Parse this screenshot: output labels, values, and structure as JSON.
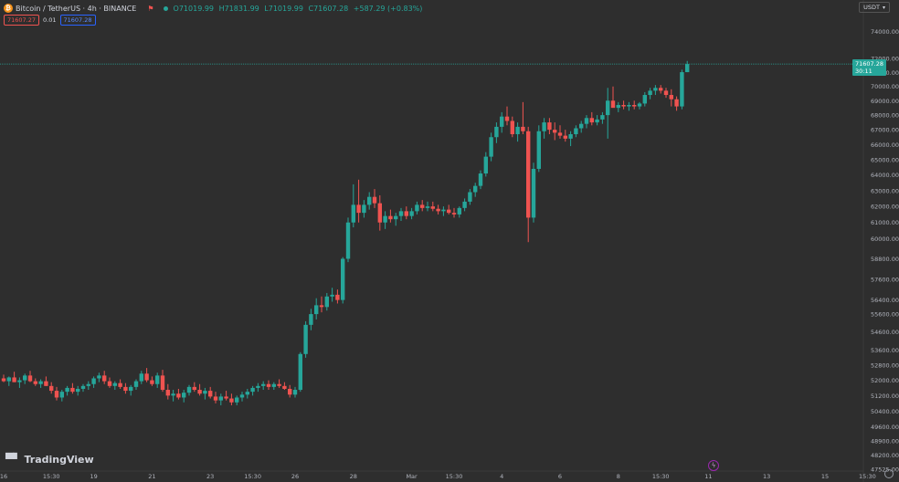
{
  "header": {
    "symbol_icon": "bitcoin-icon",
    "symbol_title": "Bitcoin / TetherUS · 4h · BINANCE",
    "ohlc": {
      "open": "O71019.99",
      "high": "H71831.99",
      "low": "L71019.99",
      "close": "C71607.28",
      "change": "+587.29 (+0.83%)"
    }
  },
  "trade": {
    "sell": "71607.27",
    "spread": "0.01",
    "buy": "71607.28"
  },
  "currency": "USDT",
  "last_price": {
    "value": "71607.28",
    "countdown": "30:11"
  },
  "brand": "TradingView",
  "colors": {
    "up": "#26a69a",
    "down": "#ef5350",
    "background": "#2e2e2e",
    "bolt": "#9c27b0"
  },
  "icons": [
    "bitcoin-icon",
    "flag-icon",
    "live-dot-icon",
    "chevron-down-icon",
    "lightning-icon",
    "gear-icon",
    "tradingview-logo-icon"
  ],
  "chart_data": {
    "type": "candlestick",
    "y_scale": "log",
    "ylim": [
      47525,
      75000
    ],
    "yticks": [
      74000,
      72000,
      71000,
      70000,
      69000,
      68000,
      67000,
      66000,
      65000,
      64000,
      63000,
      62000,
      61000,
      60000,
      58800,
      57600,
      56400,
      55600,
      54600,
      53600,
      52800,
      52000,
      51200,
      50400,
      49600,
      48900,
      48200,
      47525
    ],
    "ytick_labels": [
      "74000.00",
      "72000.00",
      "71000.00",
      "70000.00",
      "69000.00",
      "68000.00",
      "67000.00",
      "66000.00",
      "65000.00",
      "64000.00",
      "63000.00",
      "62000.00",
      "61000.00",
      "60000.00",
      "58800.00",
      "57600.00",
      "56400.00",
      "55600.00",
      "54600.00",
      "53600.00",
      "52800.00",
      "52000.00",
      "51200.00",
      "50400.00",
      "49600.00",
      "48900.00",
      "48200.00",
      "47525.00"
    ],
    "xticks": [
      {
        "label": "16",
        "index": 0
      },
      {
        "label": "15:30",
        "index": 9
      },
      {
        "label": "19",
        "index": 17
      },
      {
        "label": "21",
        "index": 28
      },
      {
        "label": "23",
        "index": 39
      },
      {
        "label": "15:30",
        "index": 47
      },
      {
        "label": "26",
        "index": 55
      },
      {
        "label": "28",
        "index": 66
      },
      {
        "label": "Mar",
        "index": 77
      },
      {
        "label": "15:30",
        "index": 85
      },
      {
        "label": "4",
        "index": 94
      },
      {
        "label": "6",
        "index": 105
      },
      {
        "label": "8",
        "index": 116
      },
      {
        "label": "15:30",
        "index": 124
      },
      {
        "label": "11",
        "index": 133
      },
      {
        "label": "13",
        "index": 144
      },
      {
        "label": "15",
        "index": 155
      },
      {
        "label": "15:30",
        "index": 163
      }
    ],
    "last_price": 71607.28,
    "candles": [
      [
        52100,
        52300,
        51900,
        51950
      ],
      [
        51950,
        52200,
        51700,
        52150
      ],
      [
        52150,
        52450,
        51900,
        51900
      ],
      [
        51900,
        52150,
        51600,
        52000
      ],
      [
        52000,
        52350,
        51800,
        52250
      ],
      [
        52250,
        52500,
        51900,
        51950
      ],
      [
        51950,
        52100,
        51700,
        51800
      ],
      [
        51800,
        52050,
        51600,
        51950
      ],
      [
        51950,
        52200,
        51700,
        51700
      ],
      [
        51700,
        51900,
        51300,
        51450
      ],
      [
        51450,
        51650,
        50950,
        51100
      ],
      [
        51100,
        51500,
        50900,
        51400
      ],
      [
        51400,
        51700,
        51200,
        51600
      ],
      [
        51600,
        51850,
        51300,
        51400
      ],
      [
        51400,
        51700,
        51200,
        51550
      ],
      [
        51550,
        51800,
        51400,
        51700
      ],
      [
        51700,
        51950,
        51500,
        51800
      ],
      [
        51800,
        52200,
        51600,
        52100
      ],
      [
        52100,
        52400,
        51900,
        52250
      ],
      [
        52250,
        52500,
        51800,
        51950
      ],
      [
        51950,
        52150,
        51600,
        51700
      ],
      [
        51700,
        51950,
        51500,
        51850
      ],
      [
        51850,
        52050,
        51550,
        51650
      ],
      [
        51650,
        51850,
        51300,
        51450
      ],
      [
        51450,
        51750,
        51200,
        51650
      ],
      [
        51650,
        52050,
        51500,
        51950
      ],
      [
        51950,
        52500,
        51800,
        52350
      ],
      [
        52350,
        52650,
        51900,
        52000
      ],
      [
        52000,
        52200,
        51700,
        51800
      ],
      [
        51800,
        52400,
        51600,
        52250
      ],
      [
        52250,
        52550,
        51400,
        51500
      ],
      [
        51500,
        51800,
        51000,
        51200
      ],
      [
        51200,
        51500,
        50900,
        51300
      ],
      [
        51300,
        51550,
        51000,
        51100
      ],
      [
        51100,
        51500,
        50850,
        51350
      ],
      [
        51350,
        51750,
        51200,
        51650
      ],
      [
        51650,
        51900,
        51400,
        51500
      ],
      [
        51500,
        51800,
        51200,
        51300
      ],
      [
        51300,
        51600,
        51000,
        51450
      ],
      [
        51450,
        51650,
        51050,
        51150
      ],
      [
        51150,
        51400,
        50800,
        50950
      ],
      [
        50950,
        51300,
        50700,
        51150
      ],
      [
        51150,
        51450,
        50950,
        51050
      ],
      [
        51050,
        51300,
        50700,
        50850
      ],
      [
        50850,
        51200,
        50700,
        51100
      ],
      [
        51100,
        51400,
        50900,
        51250
      ],
      [
        51250,
        51550,
        51050,
        51400
      ],
      [
        51400,
        51700,
        51200,
        51600
      ],
      [
        51600,
        51850,
        51400,
        51700
      ],
      [
        51700,
        51950,
        51500,
        51800
      ],
      [
        51800,
        52000,
        51500,
        51650
      ],
      [
        51650,
        51900,
        51500,
        51800
      ],
      [
        51800,
        52050,
        51600,
        51700
      ],
      [
        51700,
        51900,
        51500,
        51550
      ],
      [
        51550,
        51750,
        51100,
        51250
      ],
      [
        51250,
        51650,
        51100,
        51500
      ],
      [
        51500,
        53500,
        51400,
        53400
      ],
      [
        53400,
        55200,
        53200,
        55000
      ],
      [
        55000,
        55900,
        54700,
        55600
      ],
      [
        55600,
        56500,
        55300,
        56100
      ],
      [
        56100,
        56600,
        55700,
        56000
      ],
      [
        56000,
        56800,
        55800,
        56600
      ],
      [
        56600,
        57100,
        56300,
        56700
      ],
      [
        56700,
        57000,
        56200,
        56400
      ],
      [
        56400,
        58900,
        56200,
        58800
      ],
      [
        58800,
        61300,
        58600,
        61000
      ],
      [
        61000,
        63400,
        60700,
        62100
      ],
      [
        62100,
        63700,
        61000,
        61600
      ],
      [
        61600,
        62400,
        61300,
        62100
      ],
      [
        62100,
        62900,
        61800,
        62600
      ],
      [
        62600,
        63100,
        61900,
        62200
      ],
      [
        62200,
        62700,
        60500,
        61000
      ],
      [
        61000,
        61700,
        60600,
        61400
      ],
      [
        61400,
        61800,
        61000,
        61200
      ],
      [
        61200,
        61600,
        60800,
        61400
      ],
      [
        61400,
        61900,
        61100,
        61700
      ],
      [
        61700,
        62000,
        61200,
        61400
      ],
      [
        61400,
        61900,
        61200,
        61700
      ],
      [
        61700,
        62300,
        61500,
        62100
      ],
      [
        62100,
        62400,
        61700,
        61900
      ],
      [
        61900,
        62300,
        61700,
        62000
      ],
      [
        62000,
        62300,
        61700,
        61850
      ],
      [
        61850,
        62100,
        61500,
        61700
      ],
      [
        61700,
        62000,
        61400,
        61800
      ],
      [
        61800,
        62100,
        61500,
        61600
      ],
      [
        61600,
        61900,
        61300,
        61500
      ],
      [
        61500,
        62000,
        61300,
        61900
      ],
      [
        61900,
        62500,
        61700,
        62300
      ],
      [
        62300,
        63100,
        62100,
        62900
      ],
      [
        62900,
        63500,
        62600,
        63300
      ],
      [
        63300,
        64300,
        63100,
        64100
      ],
      [
        64100,
        65500,
        63900,
        65200
      ],
      [
        65200,
        66800,
        64900,
        66500
      ],
      [
        66500,
        67500,
        66100,
        67200
      ],
      [
        67200,
        68200,
        66800,
        67900
      ],
      [
        67900,
        68600,
        67300,
        67600
      ],
      [
        67600,
        67900,
        66500,
        66700
      ],
      [
        66700,
        67500,
        66200,
        67200
      ],
      [
        67200,
        68900,
        66700,
        66900
      ],
      [
        66900,
        67200,
        59800,
        61300
      ],
      [
        61300,
        64800,
        61000,
        64400
      ],
      [
        64400,
        67300,
        64200,
        66900
      ],
      [
        66900,
        67800,
        66400,
        67500
      ],
      [
        67500,
        67800,
        66700,
        67000
      ],
      [
        67000,
        67500,
        66300,
        66800
      ],
      [
        66800,
        67300,
        66400,
        66600
      ],
      [
        66600,
        67000,
        66200,
        66400
      ],
      [
        66400,
        66900,
        65900,
        66700
      ],
      [
        66700,
        67300,
        66500,
        67100
      ],
      [
        67100,
        67600,
        66800,
        67400
      ],
      [
        67400,
        68000,
        67100,
        67800
      ],
      [
        67800,
        68200,
        67300,
        67500
      ],
      [
        67500,
        68000,
        67300,
        67700
      ],
      [
        67700,
        68200,
        67400,
        68000
      ],
      [
        68000,
        69900,
        66400,
        69000
      ],
      [
        69000,
        70000,
        68700,
        68500
      ],
      [
        68500,
        68900,
        68200,
        68700
      ],
      [
        68700,
        69000,
        68400,
        68600
      ],
      [
        68600,
        68900,
        68300,
        68700
      ],
      [
        68700,
        69000,
        68400,
        68600
      ],
      [
        68600,
        68900,
        68400,
        68800
      ],
      [
        68800,
        69600,
        68600,
        69400
      ],
      [
        69400,
        69900,
        69100,
        69700
      ],
      [
        69700,
        70100,
        69400,
        69900
      ],
      [
        69900,
        70100,
        69500,
        69700
      ],
      [
        69700,
        69900,
        69200,
        69400
      ],
      [
        69400,
        69800,
        68600,
        69100
      ],
      [
        69100,
        69300,
        68300,
        68600
      ],
      [
        68600,
        71200,
        68400,
        71019.99
      ],
      [
        71019.99,
        71831.99,
        71019.99,
        71607.28
      ]
    ]
  }
}
